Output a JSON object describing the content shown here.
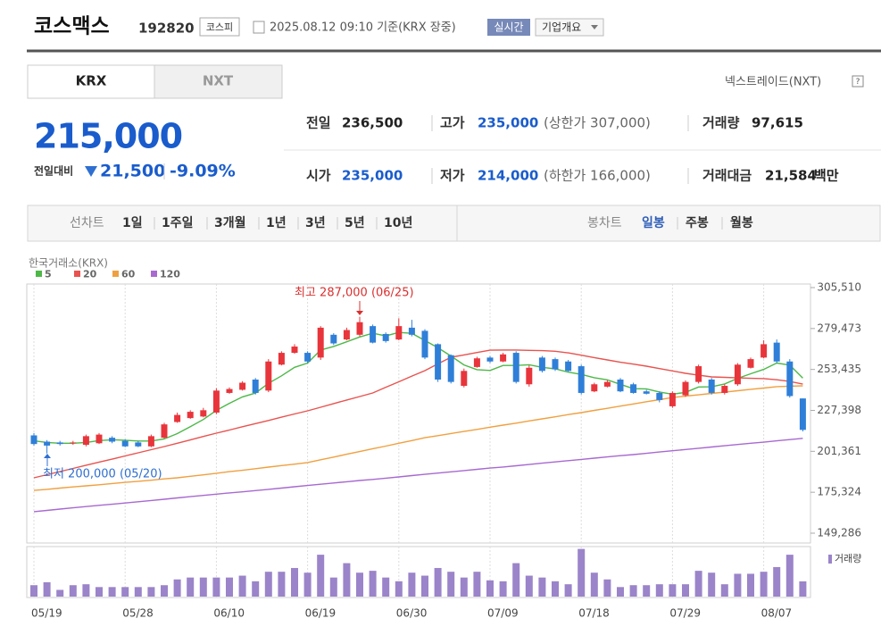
{
  "header": {
    "name": "코스맥스",
    "code": "192820",
    "market": "코스피",
    "timestamp": "2025.08.12 09:10 기준(KRX 장중)",
    "realtime": "실시간",
    "company": "기업개요"
  },
  "tabs": [
    "KRX",
    "NXT"
  ],
  "nxt_link": "넥스트레이드(NXT)",
  "quote": {
    "price": "215,000",
    "change_label": "전일대비",
    "change": "21,500",
    "change_rate": "-9.09%"
  },
  "stats": [
    {
      "label": "전일",
      "value": "236,500"
    },
    {
      "label": "고가",
      "value": "235,000",
      "note": "(상한가 307,000)"
    },
    {
      "label": "거래량",
      "value": "97,615"
    },
    {
      "label": "시가",
      "value": "235,000"
    },
    {
      "label": "저가",
      "value": "214,000",
      "note": "(하한가 166,000)"
    },
    {
      "label": "거래대금",
      "value": "21,584",
      "unit": "백만"
    }
  ],
  "periods": {
    "line_label": "선차트",
    "line": [
      "1일",
      "1주일",
      "3개월",
      "1년",
      "3년",
      "5년",
      "10년"
    ],
    "candle_label": "봉차트",
    "candle": [
      "일봉",
      "주봉",
      "월봉"
    ]
  },
  "chart_data": {
    "type": "candlestick",
    "source": "한국거래소(KRX)",
    "up_color": "#e8353b",
    "down_color": "#2f7fd8",
    "categories": [
      "05/19",
      null,
      null,
      null,
      null,
      null,
      null,
      "05/28",
      null,
      null,
      null,
      null,
      null,
      null,
      "06/10",
      null,
      null,
      null,
      null,
      null,
      null,
      "06/19",
      null,
      null,
      null,
      null,
      null,
      null,
      "06/30",
      null,
      null,
      null,
      null,
      null,
      null,
      "07/09",
      null,
      null,
      null,
      null,
      null,
      null,
      "07/18",
      null,
      null,
      null,
      null,
      null,
      null,
      "07/29",
      null,
      null,
      null,
      null,
      null,
      null,
      "08/07",
      null,
      null,
      null
    ],
    "open": [
      211500,
      207500,
      207000,
      206500,
      205500,
      206500,
      210000,
      208000,
      207000,
      204500,
      210000,
      220000,
      222500,
      223500,
      226000,
      238500,
      240500,
      247000,
      240000,
      256500,
      264000,
      264000,
      261000,
      275500,
      272500,
      275500,
      281000,
      276000,
      272500,
      280000,
      278000,
      269500,
      262500,
      243000,
      255000,
      261000,
      258500,
      264000,
      244000,
      261000,
      260000,
      258500,
      255500,
      239500,
      242500,
      247000,
      244000,
      239500,
      238500,
      230000,
      237000,
      245500,
      247000,
      238500,
      244000,
      254500,
      261000,
      270500,
      258500,
      235000
    ],
    "high": [
      213000,
      208500,
      208000,
      208000,
      212000,
      213000,
      211000,
      209000,
      208000,
      212000,
      219500,
      226000,
      227500,
      229000,
      241500,
      242000,
      246000,
      248000,
      260000,
      265000,
      269500,
      265000,
      281000,
      276500,
      280000,
      287000,
      282000,
      277000,
      286000,
      285000,
      279000,
      270000,
      263000,
      254000,
      261500,
      262000,
      264000,
      265000,
      256000,
      262000,
      261000,
      259500,
      256500,
      245000,
      246500,
      248000,
      245000,
      240500,
      239500,
      239500,
      246500,
      256500,
      248000,
      244000,
      257500,
      261000,
      272000,
      272500,
      260000,
      235000
    ],
    "low": [
      205000,
      200000,
      205000,
      205500,
      204500,
      206000,
      206500,
      204000,
      204000,
      204000,
      209500,
      219500,
      222000,
      223000,
      225000,
      238000,
      240000,
      237500,
      239000,
      256000,
      263500,
      257500,
      259500,
      269000,
      272000,
      274500,
      270000,
      270500,
      272000,
      274500,
      260000,
      245500,
      244500,
      242000,
      254500,
      257500,
      258000,
      244500,
      242500,
      251500,
      252500,
      252000,
      237500,
      239000,
      242000,
      239000,
      238000,
      237500,
      232500,
      229000,
      236000,
      244500,
      237500,
      237500,
      243000,
      254000,
      260500,
      257500,
      235500,
      214000
    ],
    "close": [
      206000,
      205000,
      206000,
      207000,
      211000,
      212000,
      207500,
      204500,
      204500,
      211000,
      218500,
      224500,
      226500,
      227500,
      240000,
      241000,
      245000,
      238500,
      258500,
      264000,
      268000,
      258500,
      280000,
      270000,
      278500,
      283500,
      270500,
      271500,
      281000,
      275500,
      261000,
      247000,
      245500,
      252500,
      260500,
      258500,
      263000,
      245500,
      254500,
      252500,
      253500,
      252500,
      238500,
      244000,
      245500,
      239500,
      238500,
      238000,
      234000,
      238500,
      245500,
      255500,
      238500,
      243000,
      256500,
      260000,
      269500,
      258500,
      236500,
      215000
    ],
    "ma": [
      {
        "name": "5",
        "color": "#4db848",
        "values": [
          208000,
          207000,
          206500,
          206500,
          207000,
          208200,
          208700,
          208400,
          207900,
          207900,
          209200,
          212600,
          217000,
          221600,
          227400,
          231900,
          236000,
          238400,
          244600,
          249400,
          254800,
          257500,
          265800,
          268100,
          271000,
          274100,
          276500,
          274800,
          277000,
          276400,
          271900,
          267200,
          262000,
          256300,
          253300,
          252800,
          256000,
          256000,
          256400,
          254800,
          253800,
          251700,
          250300,
          248200,
          246800,
          244000,
          241200,
          241100,
          239100,
          237700,
          238900,
          242300,
          242400,
          244200,
          247800,
          250700,
          253500,
          257500,
          256200,
          247900
        ]
      },
      {
        "name": "20",
        "color": "#e8534f",
        "values": [
          184500,
          186500,
          188500,
          190500,
          192500,
          194500,
          196400,
          198400,
          200400,
          202400,
          204400,
          206500,
          208600,
          210800,
          212900,
          214900,
          217000,
          219000,
          221000,
          223100,
          225100,
          227100,
          229400,
          231700,
          234000,
          236200,
          238500,
          242100,
          245600,
          249200,
          252700,
          257000,
          261200,
          262700,
          264200,
          265700,
          265800,
          265800,
          265600,
          265400,
          265000,
          264000,
          262500,
          261000,
          259500,
          258000,
          256800,
          255500,
          254000,
          252500,
          251000,
          249800,
          248700,
          248400,
          248100,
          247800,
          247600,
          246900,
          245800,
          244100
        ]
      },
      {
        "name": "60",
        "color": "#f0a040",
        "values": [
          176500,
          177200,
          178000,
          178700,
          179400,
          180100,
          180900,
          181600,
          182300,
          183000,
          183800,
          184500,
          185500,
          186400,
          187400,
          188400,
          189300,
          190300,
          191300,
          192300,
          193200,
          194200,
          196000,
          197700,
          199500,
          201200,
          203000,
          204700,
          206500,
          208200,
          210000,
          211300,
          212700,
          214000,
          215300,
          216700,
          218000,
          219300,
          220700,
          222000,
          223300,
          224700,
          226000,
          227400,
          228700,
          230100,
          231500,
          232900,
          234200,
          235600,
          236500,
          237300,
          238200,
          239000,
          239900,
          240800,
          241600,
          242500,
          242800,
          243000
        ]
      },
      {
        "name": "120",
        "color": "#a869d0",
        "values": [
          163000,
          163800,
          164600,
          165400,
          166200,
          167000,
          167700,
          168500,
          169300,
          170100,
          170900,
          171700,
          172500,
          173300,
          174100,
          174900,
          175600,
          176400,
          177200,
          178000,
          178800,
          179600,
          180400,
          181200,
          182000,
          182800,
          183500,
          184300,
          185100,
          185900,
          186700,
          187500,
          188300,
          189100,
          189900,
          190700,
          191400,
          192200,
          193000,
          193800,
          194600,
          195400,
          196200,
          197000,
          197800,
          198600,
          199300,
          200100,
          200900,
          201700,
          202500,
          203300,
          204100,
          204900,
          205700,
          206500,
          207200,
          208000,
          208800,
          209600
        ]
      }
    ],
    "ylim": [
      149286,
      305510
    ],
    "yticks": [
      {
        "value": 149286,
        "label": "149,286"
      },
      {
        "value": 175324,
        "label": "175,324"
      },
      {
        "value": 201361,
        "label": "201,361"
      },
      {
        "value": 227398,
        "label": "227,398"
      },
      {
        "value": 253435,
        "label": "253,435"
      },
      {
        "value": 279473,
        "label": "279,473"
      },
      {
        "value": 305510,
        "label": "305,510"
      }
    ],
    "annotations": {
      "max": "최고 287,000 (06/25)",
      "min": "최저 200,000 (05/20)"
    },
    "volume": {
      "name": "거래량",
      "color": "#9b84c9",
      "ylim": [
        0,
        320000
      ],
      "values": [
        73000,
        92000,
        43000,
        73000,
        79000,
        61000,
        61000,
        61000,
        61000,
        61000,
        73000,
        110000,
        122000,
        122000,
        122000,
        122000,
        134000,
        98000,
        159000,
        159000,
        183000,
        153000,
        268000,
        122000,
        214000,
        153000,
        165000,
        122000,
        98000,
        153000,
        134000,
        183000,
        159000,
        122000,
        159000,
        104000,
        98000,
        214000,
        134000,
        122000,
        98000,
        79000,
        305000,
        153000,
        110000,
        61000,
        73000,
        73000,
        79000,
        79000,
        79000,
        165000,
        153000,
        79000,
        146000,
        146000,
        159000,
        189000,
        268000,
        97615
      ]
    }
  }
}
